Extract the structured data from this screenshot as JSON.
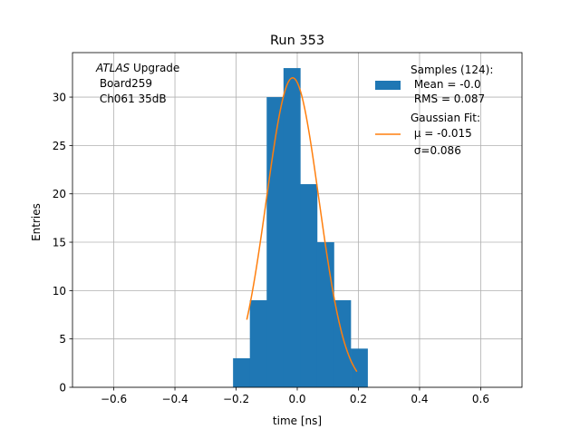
{
  "chart_data": {
    "type": "bar",
    "title": "Run 353",
    "xlabel": "time [ns]",
    "ylabel": "Entries",
    "xlim": [
      -0.735,
      0.735
    ],
    "ylim": [
      0,
      34.6
    ],
    "grid": true,
    "xticks": [
      -0.6,
      -0.4,
      -0.2,
      0.0,
      0.2,
      0.4,
      0.6
    ],
    "xtick_labels": [
      "−0.6",
      "−0.4",
      "−0.2",
      "0.0",
      "0.2",
      "0.4",
      "0.6"
    ],
    "yticks": [
      0,
      5,
      10,
      15,
      20,
      25,
      30
    ],
    "ytick_labels": [
      "0",
      "5",
      "10",
      "15",
      "20",
      "25",
      "30"
    ],
    "histogram": {
      "name": "Samples (124):",
      "color": "#1f77b4",
      "bin_edges": [
        -0.21,
        -0.155,
        -0.1,
        -0.045,
        0.01,
        0.065,
        0.12,
        0.175,
        0.23
      ],
      "counts": [
        3,
        9,
        30,
        33,
        21,
        15,
        9,
        4
      ]
    },
    "fit": {
      "name": "Gaussian Fit:",
      "color": "#ff7f0e",
      "mu": -0.015,
      "sigma": 0.086,
      "amplitude": 32,
      "x_range": [
        -0.165,
        0.195
      ]
    },
    "annotation": {
      "line1_italic": "ATLAS",
      "line1_rest": " Upgrade",
      "line2": " Board259",
      "line3": " Ch061 35dB"
    },
    "legend": {
      "position": "top-right",
      "entries": [
        {
          "lines": [
            "Samples (124):",
            " Mean = -0.0",
            " RMS = 0.087"
          ]
        },
        {
          "lines": [
            "Gaussian Fit:",
            " μ = -0.015",
            " σ=0.086"
          ]
        }
      ]
    }
  }
}
